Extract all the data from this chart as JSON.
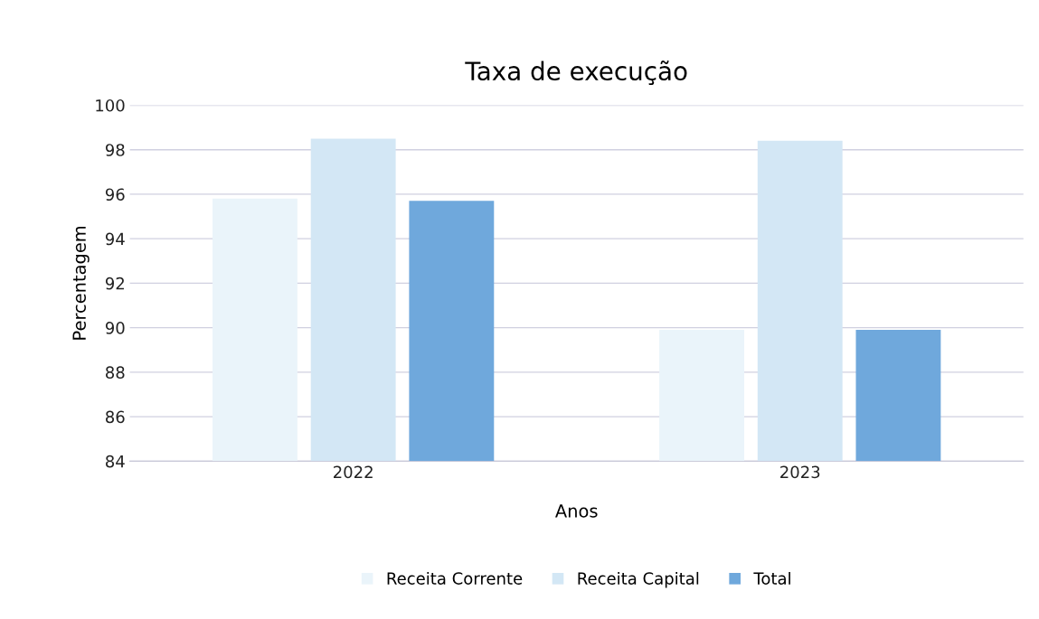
{
  "chart_data": {
    "type": "bar",
    "title": "Taxa de execução",
    "xlabel": "Anos",
    "ylabel": "Percentagem",
    "categories": [
      "2022",
      "2023"
    ],
    "series": [
      {
        "name": "Receita Corrente",
        "color": "#eaf4fa",
        "values": [
          95.8,
          89.9
        ]
      },
      {
        "name": "Receita Capital",
        "color": "#d3e7f5",
        "values": [
          98.5,
          98.4
        ]
      },
      {
        "name": "Total",
        "color": "#6fa8dc",
        "values": [
          95.7,
          89.9
        ]
      }
    ],
    "ylim": [
      84,
      100
    ],
    "yticks": [
      84,
      86,
      88,
      90,
      92,
      94,
      96,
      98,
      100
    ],
    "grid": "y",
    "legend": "bottom"
  }
}
